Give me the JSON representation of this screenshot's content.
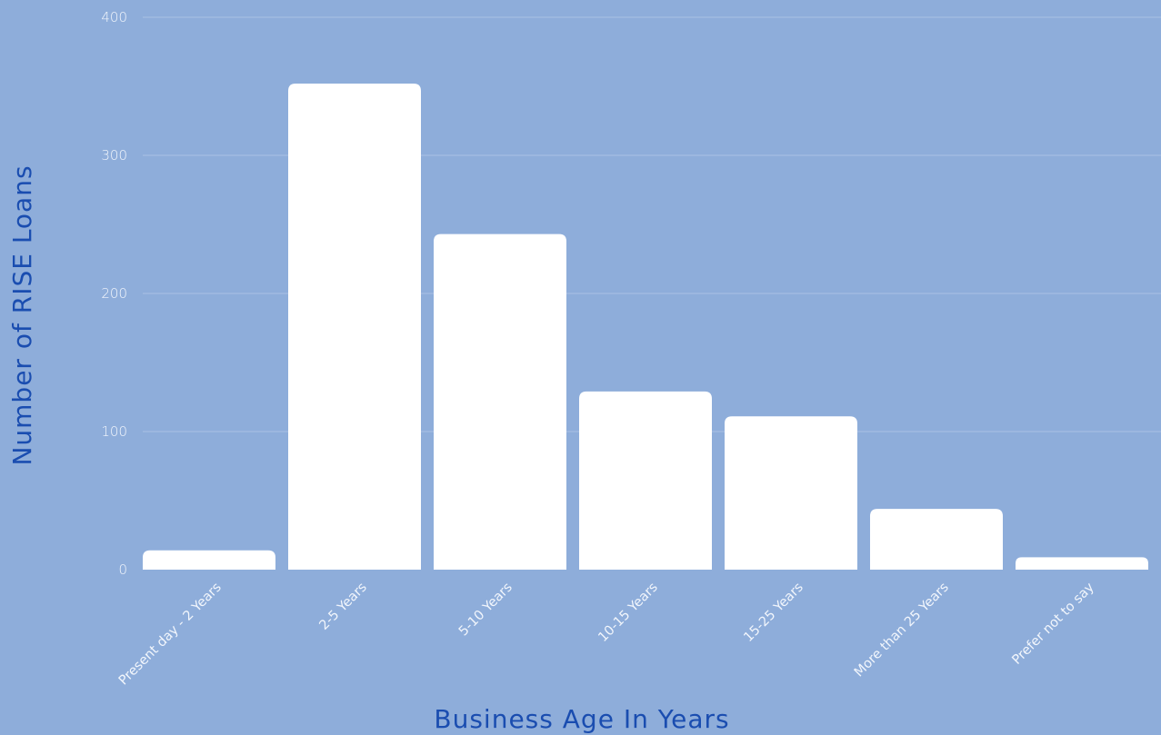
{
  "chart_data": {
    "type": "bar",
    "categories": [
      "Present day - 2 Years",
      "2-5 Years",
      "5-10 Years",
      "10-15 Years",
      "15-25 Years",
      "More than 25 Years",
      "Prefer not to say"
    ],
    "values": [
      14,
      352,
      243,
      129,
      111,
      44,
      9
    ],
    "xlabel": "Business Age In Years",
    "ylabel": "Number of RISE Loans",
    "ylim": [
      0,
      400
    ],
    "yticks": [
      "0",
      "100",
      "200",
      "300",
      "400"
    ],
    "grid": true,
    "legend": "none",
    "colors": {
      "background": "#8eadda",
      "bar": "#ffffff",
      "gridline": "#a9c1e4",
      "tick_text": "#f2f6fc",
      "axis_title": "#1a4db0"
    }
  }
}
